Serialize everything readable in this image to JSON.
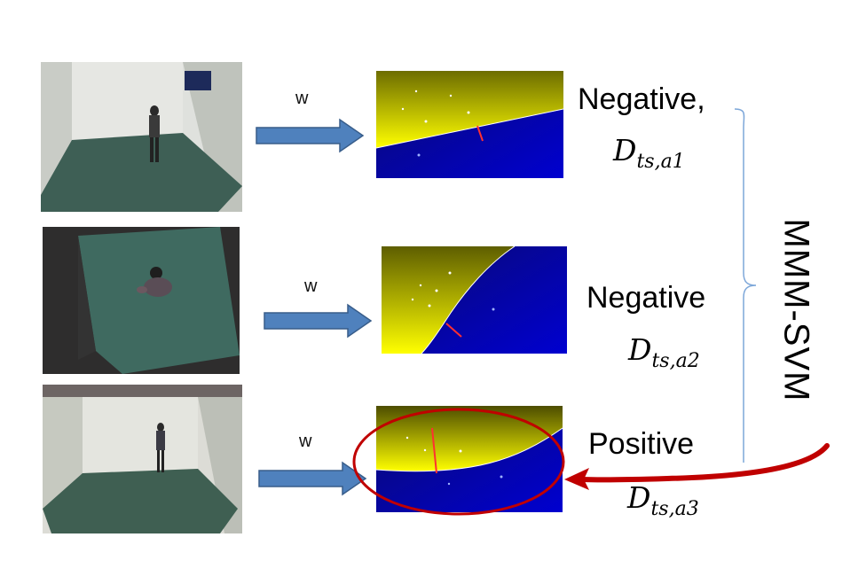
{
  "rows": [
    {
      "weight_label": "w",
      "result_label": "Negative,",
      "distance_symbol": "D",
      "distance_subscript": "ts,a1"
    },
    {
      "weight_label": "w",
      "result_label": "Negative",
      "distance_symbol": "D",
      "distance_subscript": "ts,a2"
    },
    {
      "weight_label": "w",
      "result_label": "Positive",
      "distance_symbol": "D",
      "distance_subscript": "ts,a3"
    }
  ],
  "method_label": "MMM-SVM",
  "colors": {
    "arrow_fill": "#4f81bd",
    "arrow_stroke": "#385d8a",
    "plot_top": "#ffff00",
    "plot_bottom": "#0000b4",
    "margin_line": "#ff3030",
    "highlight": "#c00000",
    "brace": "#7da7d9"
  }
}
